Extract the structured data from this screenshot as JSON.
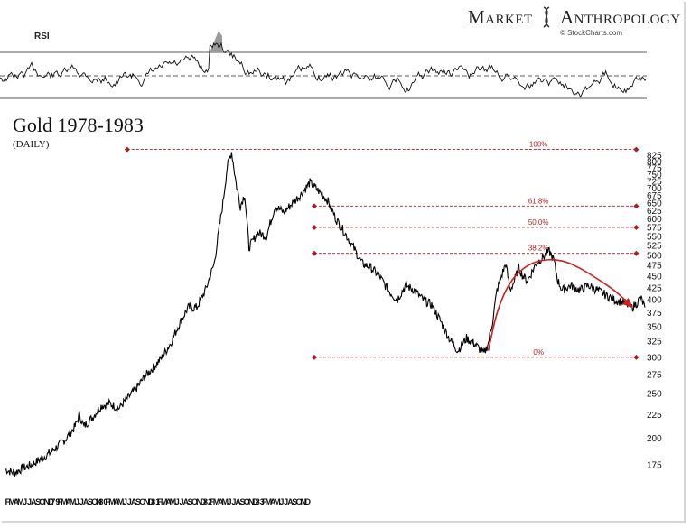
{
  "brand": {
    "name": "Market Anthropology",
    "left": "Market",
    "right": "Anthropology",
    "credit": "© StockCharts.com"
  },
  "rsi": {
    "label": "RSI",
    "levels": [
      70,
      50,
      30
    ]
  },
  "chart_data": {
    "type": "line",
    "title": "Gold 1978-1983",
    "subtitle": "(DAILY)",
    "xlabel": "",
    "ylabel": "",
    "y_scale": "log",
    "ylim": [
      165,
      860
    ],
    "yticks": [
      825,
      800,
      775,
      750,
      725,
      700,
      675,
      650,
      625,
      600,
      575,
      550,
      525,
      500,
      475,
      450,
      425,
      400,
      375,
      350,
      325,
      300,
      275,
      250,
      225,
      200,
      175
    ],
    "x_tick_labels": [
      "F",
      "M",
      "A",
      "M",
      "J",
      "J",
      "A",
      "S",
      "O",
      "N",
      "D",
      "79",
      "F",
      "M",
      "A",
      "M",
      "J",
      "J",
      "A",
      "S",
      "O",
      "N",
      "80",
      "F",
      "M",
      "A",
      "M",
      "J",
      "J",
      "A",
      "S",
      "O",
      "N",
      "D",
      "81",
      "F",
      "M",
      "A",
      "M",
      "J",
      "J",
      "A",
      "S",
      "O",
      "N",
      "D",
      "82",
      "F",
      "M",
      "A",
      "M",
      "J",
      "J",
      "A",
      "S",
      "O",
      "N",
      "D",
      "83",
      "F",
      "M",
      "A",
      "M",
      "J",
      "J",
      "A",
      "S",
      "O",
      "N",
      "D"
    ],
    "series": [
      {
        "values": [
          [
            0,
            171
          ],
          [
            2,
            168
          ],
          [
            4,
            172
          ],
          [
            6,
            175
          ],
          [
            8,
            180
          ],
          [
            10,
            185
          ],
          [
            12,
            192
          ],
          [
            14,
            200
          ],
          [
            16,
            212
          ],
          [
            17,
            225
          ],
          [
            18,
            212
          ],
          [
            20,
            222
          ],
          [
            22,
            235
          ],
          [
            24,
            238
          ],
          [
            26,
            232
          ],
          [
            28,
            244
          ],
          [
            30,
            256
          ],
          [
            32,
            272
          ],
          [
            34,
            285
          ],
          [
            36,
            300
          ],
          [
            38,
            322
          ],
          [
            40,
            355
          ],
          [
            42,
            385
          ],
          [
            44,
            385
          ],
          [
            46,
            420
          ],
          [
            48,
            480
          ],
          [
            49,
            560
          ],
          [
            50,
            650
          ],
          [
            51,
            780
          ],
          [
            52,
            840
          ],
          [
            53,
            720
          ],
          [
            54,
            640
          ],
          [
            55,
            680
          ],
          [
            56,
            520
          ],
          [
            57,
            540
          ],
          [
            58,
            560
          ],
          [
            60,
            550
          ],
          [
            62,
            640
          ],
          [
            64,
            620
          ],
          [
            66,
            650
          ],
          [
            68,
            680
          ],
          [
            70,
            720
          ],
          [
            72,
            690
          ],
          [
            74,
            660
          ],
          [
            76,
            600
          ],
          [
            78,
            560
          ],
          [
            80,
            520
          ],
          [
            82,
            480
          ],
          [
            84,
            470
          ],
          [
            86,
            450
          ],
          [
            88,
            420
          ],
          [
            90,
            400
          ],
          [
            92,
            430
          ],
          [
            94,
            420
          ],
          [
            96,
            400
          ],
          [
            98,
            390
          ],
          [
            100,
            360
          ],
          [
            102,
            330
          ],
          [
            104,
            310
          ],
          [
            106,
            330
          ],
          [
            108,
            320
          ],
          [
            110,
            305
          ],
          [
            111,
            322
          ],
          [
            112,
            360
          ],
          [
            113,
            420
          ],
          [
            114,
            450
          ],
          [
            115,
            480
          ],
          [
            116,
            420
          ],
          [
            117,
            440
          ],
          [
            118,
            470
          ],
          [
            119,
            450
          ],
          [
            120,
            440
          ],
          [
            122,
            480
          ],
          [
            124,
            500
          ],
          [
            125,
            510
          ],
          [
            126,
            490
          ],
          [
            127,
            440
          ],
          [
            128,
            420
          ],
          [
            130,
            430
          ],
          [
            132,
            420
          ],
          [
            134,
            430
          ],
          [
            136,
            420
          ],
          [
            138,
            410
          ],
          [
            140,
            400
          ],
          [
            142,
            395
          ],
          [
            144,
            385
          ],
          [
            145,
            392
          ],
          [
            146,
            405
          ],
          [
            147,
            385
          ]
        ]
      }
    ],
    "fibonacci": {
      "levels": [
        {
          "label": "100%",
          "price": 850,
          "from_x": 28
        },
        {
          "label": "61.8%",
          "price": 640,
          "from_x": 71
        },
        {
          "label": "50.0%",
          "price": 575,
          "from_x": 71
        },
        {
          "label": "38.2%",
          "price": 505,
          "from_x": 71
        },
        {
          "label": "0%",
          "price": 300,
          "from_x": 71
        }
      ],
      "end_x": 145,
      "color": "#b01c1c"
    },
    "arc": {
      "points": [
        [
          111,
          310
        ],
        [
          113,
          380
        ],
        [
          116,
          440
        ],
        [
          120,
          478
        ],
        [
          124,
          490
        ],
        [
          128,
          488
        ],
        [
          132,
          470
        ],
        [
          136,
          445
        ],
        [
          140,
          420
        ],
        [
          143,
          395
        ]
      ],
      "color": "#cc1f1f"
    },
    "line_color": "#000000",
    "grid": false,
    "legend": "none"
  }
}
